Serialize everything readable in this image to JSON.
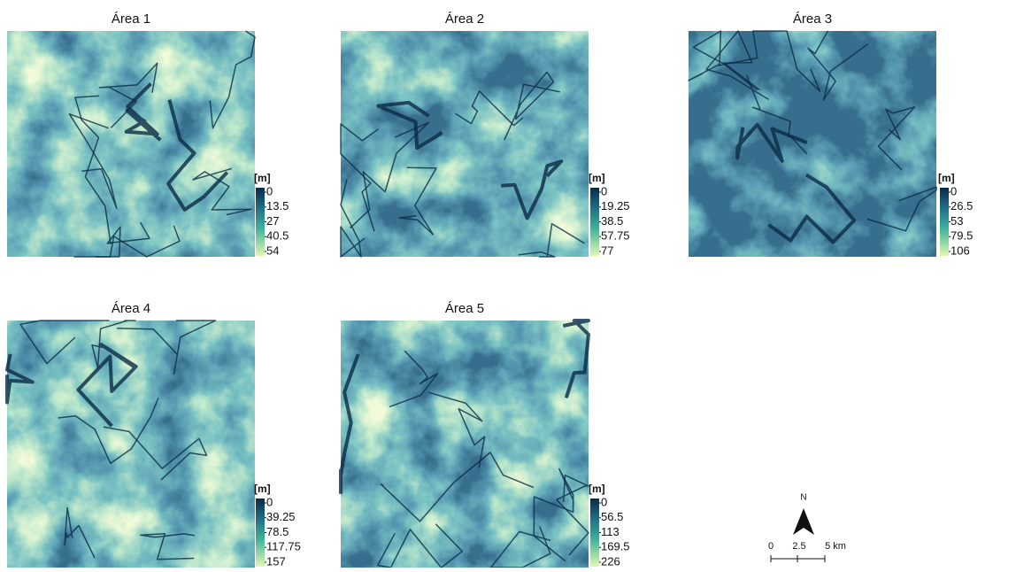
{
  "panels": [
    {
      "title": "Área 1",
      "unit": "[m]",
      "legend_ticks": [
        0,
        13.5,
        27,
        40.5,
        54
      ]
    },
    {
      "title": "Área 2",
      "unit": "[m]",
      "legend_ticks": [
        0,
        19.25,
        38.5,
        57.75,
        77
      ]
    },
    {
      "title": "Área 3",
      "unit": "[m]",
      "legend_ticks": [
        0,
        26.5,
        53,
        79.5,
        106
      ]
    },
    {
      "title": "Área 4",
      "unit": "[m]",
      "legend_ticks": [
        0,
        39.25,
        78.5,
        117.75,
        157
      ]
    },
    {
      "title": "Área 5",
      "unit": "[m]",
      "legend_ticks": [
        0,
        56.5,
        113,
        169.5,
        226
      ]
    }
  ],
  "north_arrow": "N",
  "scale_bar": {
    "labels": [
      "0",
      "2.5",
      "5 km"
    ]
  }
}
